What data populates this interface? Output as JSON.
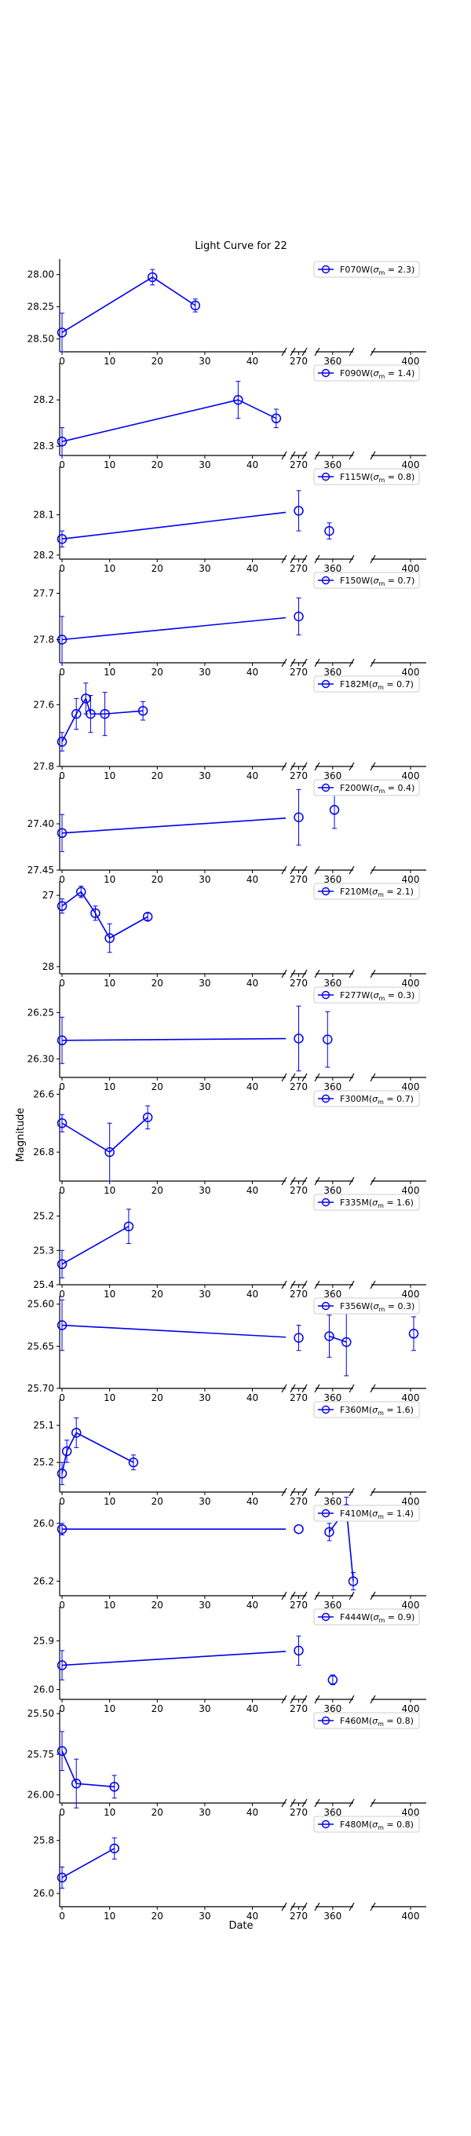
{
  "figure": {
    "title": "Light Curve for 22",
    "xlabel": "Date",
    "ylabel": "Magnitude"
  },
  "colors": {
    "series": "#0000ee",
    "axis": "#000000",
    "legend_border": "#cccccc"
  },
  "chart_data": [
    {
      "type": "line",
      "title": "Light Curve for 22",
      "filter": "F070W",
      "legend": "F070W(σ_m = 2.3)",
      "legend_parts": {
        "name": "F070W(",
        "sigma": "σ",
        "sub": "m",
        "rest": " = 2.3)"
      },
      "ylim": [
        28.6,
        27.88
      ],
      "yticks": [
        28.0,
        28.25,
        28.5
      ],
      "yticklabels": [
        "28.00",
        "28.25",
        "28.50"
      ],
      "x": [
        0,
        19,
        28
      ],
      "y": [
        28.45,
        28.02,
        28.24
      ],
      "yerr": [
        0.15,
        0.06,
        0.05
      ]
    },
    {
      "type": "line",
      "filter": "F090W",
      "legend": "F090W(σ_m = 1.4)",
      "legend_parts": {
        "name": "F090W(",
        "sigma": "σ",
        "sub": "m",
        "rest": " = 1.4)"
      },
      "ylim": [
        28.32,
        28.12
      ],
      "yticks": [
        28.2,
        28.3
      ],
      "yticklabels": [
        "28.2",
        "28.3"
      ],
      "x": [
        0,
        37,
        45
      ],
      "y": [
        28.29,
        28.2,
        28.24
      ],
      "yerr": [
        0.03,
        0.04,
        0.02
      ]
    },
    {
      "type": "line",
      "filter": "F115W",
      "legend": "F115W(σ_m = 0.8)",
      "legend_parts": {
        "name": "F115W(",
        "sigma": "σ",
        "sub": "m",
        "rest": " = 0.8)"
      },
      "ylim": [
        28.21,
        27.98
      ],
      "yticks": [
        28.1,
        28.2
      ],
      "yticklabels": [
        "28.1",
        "28.2"
      ],
      "x": [
        0,
        270,
        358
      ],
      "y": [
        28.16,
        28.09,
        28.14
      ],
      "yerr": [
        0.02,
        0.05,
        0.02
      ]
    },
    {
      "type": "line",
      "filter": "F150W",
      "legend": "F150W(σ_m = 0.7)",
      "legend_parts": {
        "name": "F150W(",
        "sigma": "σ",
        "sub": "m",
        "rest": " = 0.7)"
      },
      "ylim": [
        27.85,
        27.65
      ],
      "yticks": [
        27.7,
        27.8
      ],
      "yticklabels": [
        "27.7",
        "27.8"
      ],
      "x": [
        0,
        270
      ],
      "y": [
        27.8,
        27.75
      ],
      "yerr": [
        0.05,
        0.04
      ]
    },
    {
      "type": "line",
      "filter": "F182M",
      "legend": "F182M(σ_m = 0.7)",
      "legend_parts": {
        "name": "F182M(",
        "sigma": "σ",
        "sub": "m",
        "rest": " = 0.7)"
      },
      "ylim": [
        27.8,
        27.5
      ],
      "yticks": [
        27.6,
        27.8
      ],
      "yticklabels": [
        "27.6",
        "27.8"
      ],
      "x": [
        0,
        3,
        5,
        6,
        9,
        17
      ],
      "y": [
        27.72,
        27.63,
        27.58,
        27.63,
        27.63,
        27.62
      ],
      "yerr": [
        0.03,
        0.05,
        0.05,
        0.06,
        0.07,
        0.03
      ]
    },
    {
      "type": "line",
      "filter": "F200W",
      "legend": "F200W(σ_m = 0.4)",
      "legend_parts": {
        "name": "F200W(",
        "sigma": "σ",
        "sub": "m",
        "rest": " = 0.4)"
      },
      "ylim": [
        27.45,
        27.35
      ],
      "yticks": [
        27.4,
        27.45
      ],
      "yticklabels": [
        "27.40",
        "27.45"
      ],
      "x": [
        0,
        270,
        361
      ],
      "y": [
        27.41,
        27.393,
        27.385
      ],
      "yerr": [
        0.02,
        0.03,
        0.02
      ]
    },
    {
      "type": "line",
      "filter": "F210M",
      "legend": "F210M(σ_m = 2.1)",
      "legend_parts": {
        "name": "F210M(",
        "sigma": "σ",
        "sub": "m",
        "rest": " = 2.1)"
      },
      "ylim": [
        28.1,
        26.8
      ],
      "yticks": [
        27.0,
        28.0
      ],
      "yticklabels": [
        "27",
        "28"
      ],
      "x": [
        0,
        4,
        7,
        10,
        18
      ],
      "y": [
        27.15,
        26.95,
        27.25,
        27.6,
        27.3
      ],
      "yerr": [
        0.1,
        0.08,
        0.1,
        0.2,
        0.05
      ]
    },
    {
      "type": "line",
      "filter": "F277W",
      "legend": "F277W(σ_m = 0.3)",
      "legend_parts": {
        "name": "F277W(",
        "sigma": "σ",
        "sub": "m",
        "rest": " = 0.3)"
      },
      "ylim": [
        26.32,
        26.22
      ],
      "yticks": [
        26.25,
        26.3
      ],
      "yticklabels": [
        "26.25",
        "26.30"
      ],
      "x": [
        0,
        270,
        357
      ],
      "y": [
        26.28,
        26.278,
        26.279
      ],
      "yerr": [
        0.025,
        0.035,
        0.03
      ]
    },
    {
      "type": "line",
      "filter": "F300M",
      "legend": "F300M(σ_m = 0.7)",
      "legend_parts": {
        "name": "F300M(",
        "sigma": "σ",
        "sub": "m",
        "rest": " = 0.7)"
      },
      "ylim": [
        26.9,
        26.58
      ],
      "yticks": [
        26.6,
        26.8
      ],
      "yticklabels": [
        "26.6",
        "26.8"
      ],
      "x": [
        0,
        10,
        18
      ],
      "y": [
        26.7,
        26.8,
        26.68
      ],
      "yerr": [
        0.03,
        0.1,
        0.04
      ]
    },
    {
      "type": "line",
      "filter": "F335M",
      "legend": "F335M(σ_m = 1.6)",
      "legend_parts": {
        "name": "F335M(",
        "sigma": "σ",
        "sub": "m",
        "rest": " = 1.6)"
      },
      "ylim": [
        25.4,
        25.13
      ],
      "yticks": [
        25.2,
        25.3,
        25.4
      ],
      "yticklabels": [
        "25.2",
        "25.3",
        "25.4"
      ],
      "x": [
        0,
        14
      ],
      "y": [
        25.34,
        25.23
      ],
      "yerr": [
        0.04,
        0.05
      ]
    },
    {
      "type": "line",
      "filter": "F356W",
      "legend": "F356W(σ_m = 0.3)",
      "legend_parts": {
        "name": "F356W(",
        "sigma": "σ",
        "sub": "m",
        "rest": " = 0.3)"
      },
      "ylim": [
        25.7,
        25.59
      ],
      "yticks": [
        25.6,
        25.65,
        25.7
      ],
      "yticklabels": [
        "25.60",
        "25.65",
        "25.70"
      ],
      "x": [
        0,
        270,
        358,
        368,
        402
      ],
      "y": [
        25.625,
        25.64,
        25.638,
        25.645,
        25.635
      ],
      "yerr": [
        0.03,
        0.015,
        0.025,
        0.04,
        0.02
      ]
    },
    {
      "type": "line",
      "filter": "F360M",
      "legend": "F360M(σ_m = 1.6)",
      "legend_parts": {
        "name": "F360M(",
        "sigma": "σ",
        "sub": "m",
        "rest": " = 1.6)"
      },
      "ylim": [
        25.28,
        25.03
      ],
      "yticks": [
        25.1,
        25.2
      ],
      "yticklabels": [
        "25.1",
        "25.2"
      ],
      "x": [
        0,
        1,
        3,
        15
      ],
      "y": [
        25.23,
        25.17,
        25.12,
        25.2
      ],
      "yerr": [
        0.03,
        0.03,
        0.04,
        0.02
      ]
    },
    {
      "type": "line",
      "filter": "F410M",
      "legend": "F410M(σ_m = 1.4)",
      "legend_parts": {
        "name": "F410M(",
        "sigma": "σ",
        "sub": "m",
        "rest": " = 1.4)"
      },
      "ylim": [
        26.25,
        25.93
      ],
      "yticks": [
        26.0,
        26.2
      ],
      "yticklabels": [
        "26.0",
        "26.2"
      ],
      "x": [
        0,
        270,
        358,
        368,
        372
      ],
      "y": [
        26.02,
        26.02,
        26.03,
        25.95,
        26.2
      ],
      "yerr": [
        0.02,
        0.0,
        0.03,
        0.04,
        0.03
      ]
    },
    {
      "type": "line",
      "filter": "F444W",
      "legend": "F444W(σ_m = 0.9)",
      "legend_parts": {
        "name": "F444W(",
        "sigma": "σ",
        "sub": "m",
        "rest": " = 0.9)"
      },
      "ylim": [
        26.02,
        25.83
      ],
      "yticks": [
        25.9,
        26.0
      ],
      "yticklabels": [
        "25.9",
        "26.0"
      ],
      "x": [
        0,
        270,
        360
      ],
      "y": [
        25.95,
        25.92,
        25.98
      ],
      "yerr": [
        0.03,
        0.03,
        0.01
      ]
    },
    {
      "type": "line",
      "filter": "F460M",
      "legend": "F460M(σ_m = 0.8)",
      "legend_parts": {
        "name": "F460M(",
        "sigma": "σ",
        "sub": "m",
        "rest": " = 0.8)"
      },
      "ylim": [
        26.05,
        25.48
      ],
      "yticks": [
        25.5,
        25.75,
        26.0
      ],
      "yticklabels": [
        "25.50",
        "25.75",
        "26.00"
      ],
      "x": [
        0,
        3,
        11
      ],
      "y": [
        25.73,
        25.93,
        25.95
      ],
      "yerr": [
        0.12,
        0.15,
        0.07
      ]
    },
    {
      "type": "line",
      "filter": "F480M",
      "legend": "F480M(σ_m = 0.8)",
      "legend_parts": {
        "name": "F480M(",
        "sigma": "σ",
        "sub": "m",
        "rest": " = 0.8)"
      },
      "ylim": [
        26.05,
        25.7
      ],
      "yticks": [
        25.8,
        26.0
      ],
      "yticklabels": [
        "25.8",
        "26.0"
      ],
      "x": [
        0,
        11
      ],
      "y": [
        25.94,
        25.83
      ],
      "yerr": [
        0.04,
        0.04
      ]
    }
  ],
  "x_axis": {
    "segments": [
      {
        "range": [
          -0.5,
          47
        ],
        "ticks": [
          0,
          10,
          20,
          30,
          40
        ],
        "ticklabels": [
          "0",
          "10",
          "20",
          "30",
          "40"
        ]
      },
      {
        "range": [
          263,
          277
        ],
        "ticks": [
          270
        ],
        "ticklabels": [
          "270"
        ]
      },
      {
        "range": [
          350,
          372
        ],
        "ticks": [
          360
        ],
        "ticklabels": [
          "360"
        ]
      },
      {
        "range": [
          375,
          410
        ],
        "ticks": [
          400
        ],
        "ticklabels": [
          "400"
        ]
      }
    ]
  }
}
